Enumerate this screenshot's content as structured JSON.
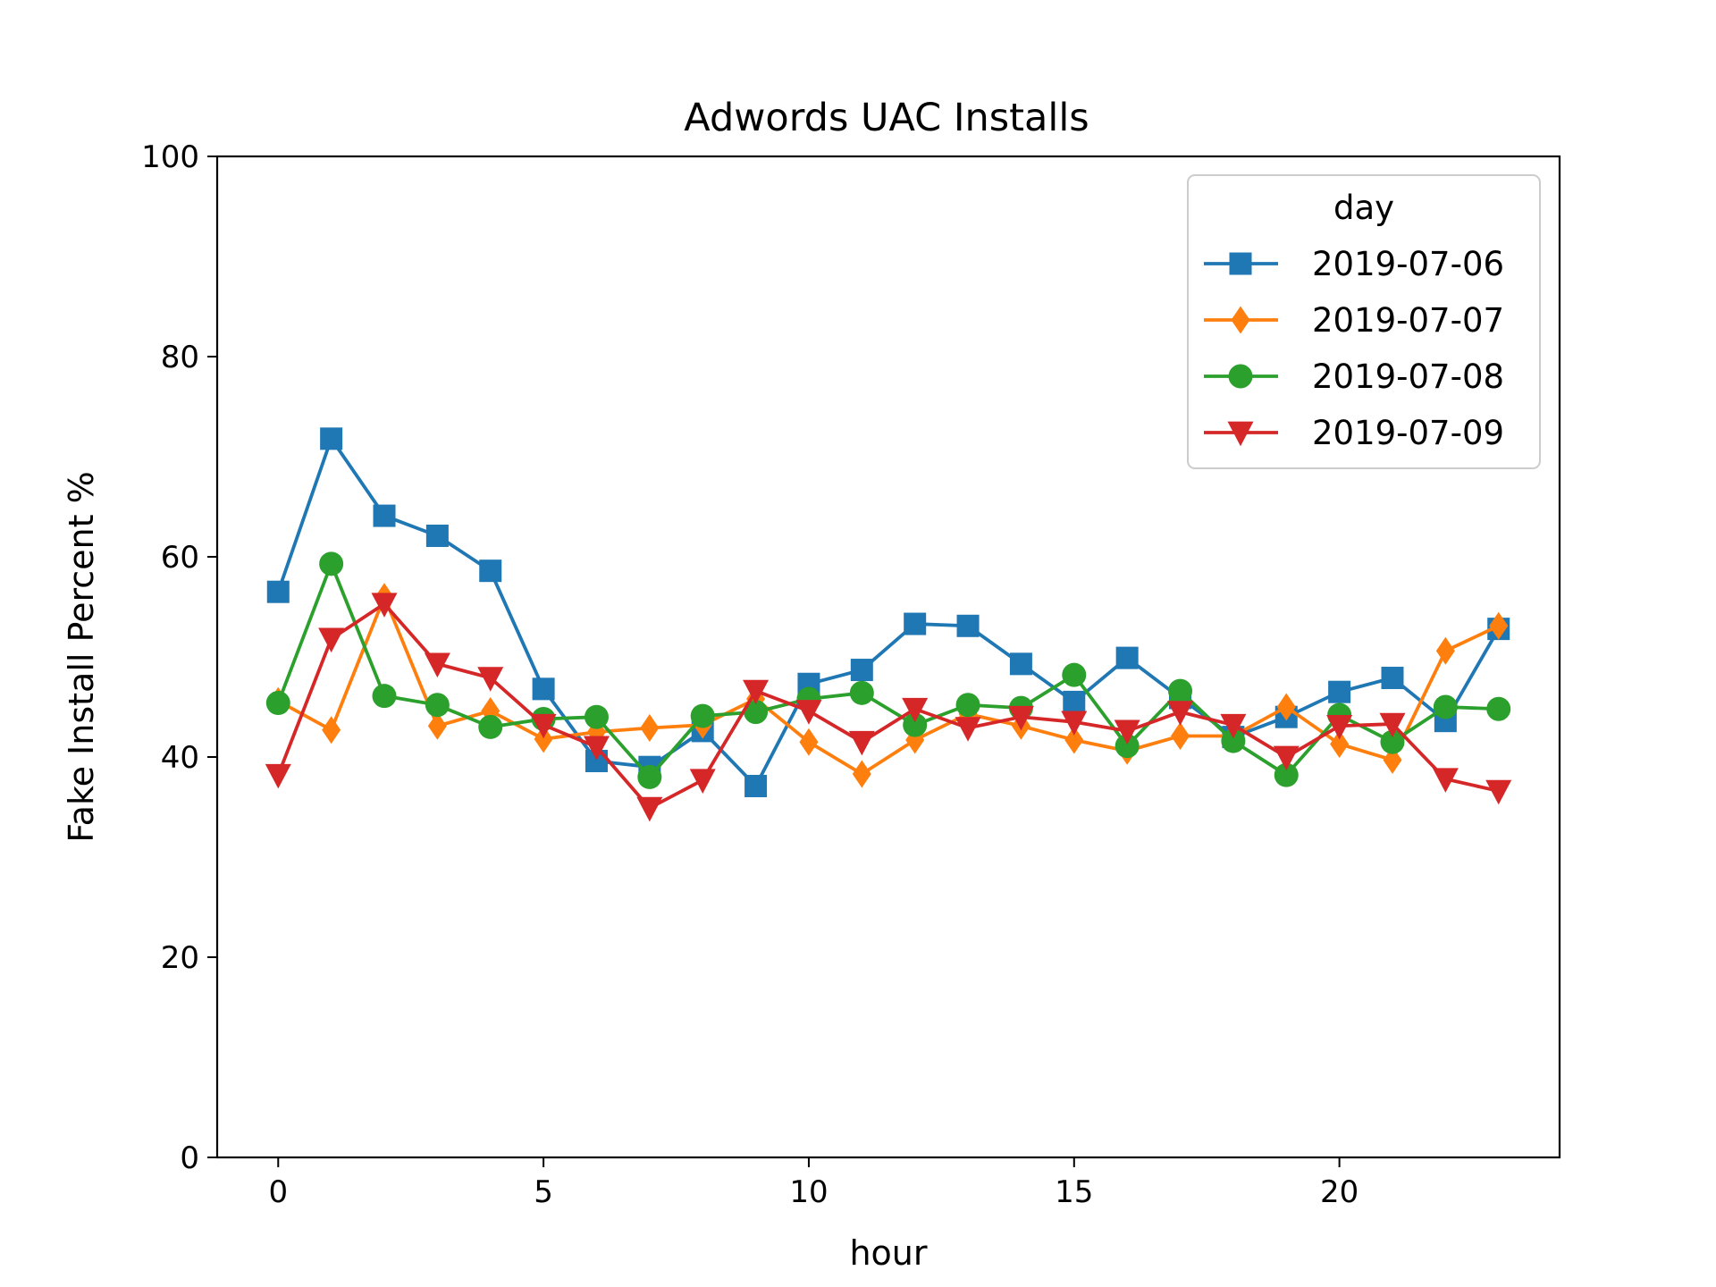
{
  "chart_data": {
    "type": "line",
    "title": "Adwords UAC Installs",
    "xlabel": "hour",
    "ylabel": "Fake Install Percent %",
    "xlim": [
      -1.15,
      24.15
    ],
    "ylim": [
      0,
      100
    ],
    "xticks": [
      0,
      5,
      10,
      15,
      20
    ],
    "yticks": [
      0,
      20,
      40,
      60,
      80,
      100
    ],
    "grid": false,
    "legend": {
      "title": "day",
      "placement": "top-right"
    },
    "x": [
      0,
      1,
      2,
      3,
      4,
      5,
      6,
      7,
      8,
      9,
      10,
      11,
      12,
      13,
      14,
      15,
      16,
      17,
      18,
      19,
      20,
      21,
      22,
      23
    ],
    "series": [
      {
        "name": "2019-07-06",
        "color": "#1f77b4",
        "marker": "square",
        "values": [
          56.5,
          71.8,
          64.1,
          62.1,
          58.6,
          46.8,
          39.6,
          39.0,
          42.6,
          37.1,
          47.3,
          48.7,
          53.3,
          53.1,
          49.3,
          45.5,
          49.9,
          45.9,
          42.0,
          44.0,
          46.5,
          47.9,
          43.6,
          52.8
        ]
      },
      {
        "name": "2019-07-07",
        "color": "#ff7f0e",
        "marker": "diamond",
        "values": [
          45.6,
          42.7,
          56.0,
          43.1,
          44.6,
          41.8,
          42.5,
          42.9,
          43.2,
          45.8,
          41.5,
          38.3,
          41.7,
          44.3,
          43.1,
          41.7,
          40.6,
          42.1,
          42.1,
          45.0,
          41.3,
          39.7,
          50.6,
          53.1
        ]
      },
      {
        "name": "2019-07-08",
        "color": "#2ca02c",
        "marker": "circle",
        "values": [
          45.4,
          59.3,
          46.1,
          45.2,
          43.0,
          43.8,
          44.0,
          38.0,
          44.1,
          44.5,
          45.8,
          46.4,
          43.2,
          45.2,
          44.9,
          48.2,
          41.1,
          46.6,
          41.6,
          38.2,
          44.2,
          41.5,
          45.0,
          44.8
        ]
      },
      {
        "name": "2019-07-09",
        "color": "#d62728",
        "marker": "triangle-down",
        "values": [
          38.2,
          51.8,
          55.3,
          49.3,
          47.9,
          43.2,
          41.0,
          34.9,
          37.7,
          46.6,
          44.6,
          41.5,
          44.8,
          42.9,
          44.0,
          43.5,
          42.6,
          44.5,
          43.2,
          40.0,
          43.1,
          43.3,
          37.8,
          36.6
        ]
      }
    ]
  }
}
